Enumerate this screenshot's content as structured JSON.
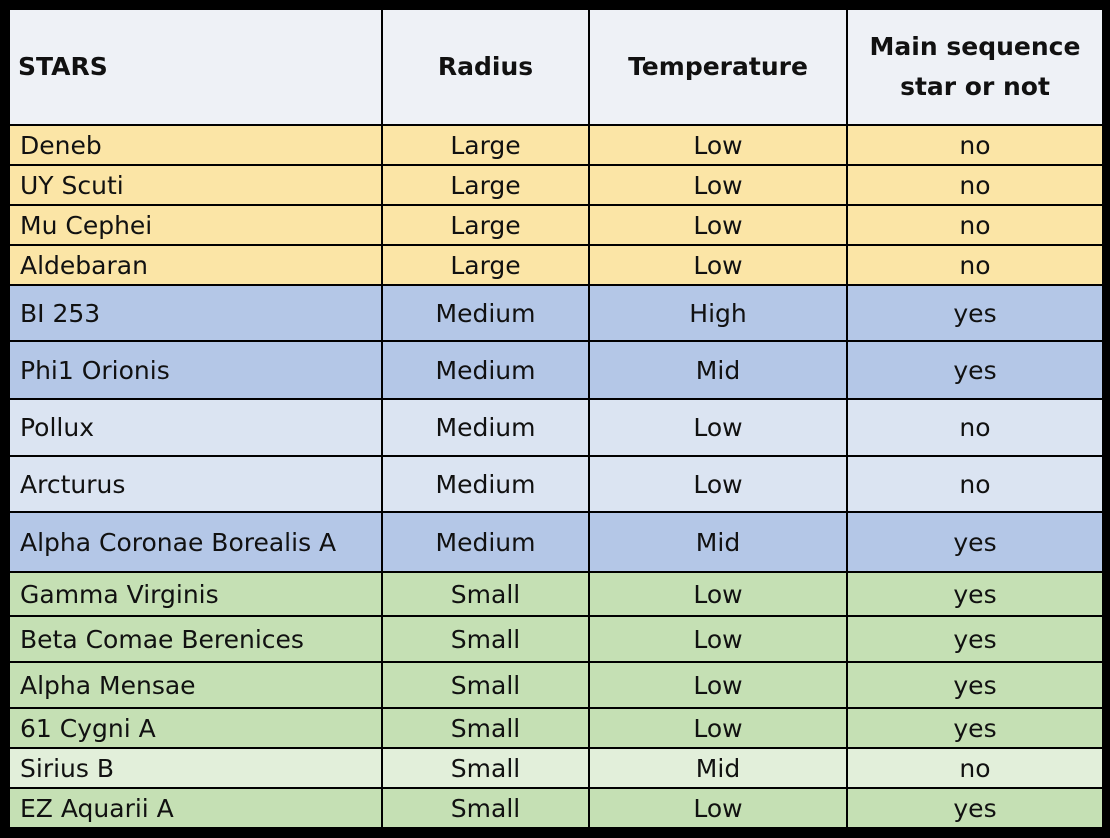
{
  "table": {
    "headers": [
      "STARS",
      "Radius",
      "Temperature",
      "Main sequence star or not"
    ],
    "rows": [
      {
        "star": "Deneb",
        "radius": "Large",
        "temperature": "Low",
        "main_sequence": "no",
        "color": "#fbe5a6"
      },
      {
        "star": "UY Scuti",
        "radius": "Large",
        "temperature": "Low",
        "main_sequence": "no",
        "color": "#fbe5a6"
      },
      {
        "star": "Mu Cephei",
        "radius": "Large",
        "temperature": "Low",
        "main_sequence": "no",
        "color": "#fbe5a6"
      },
      {
        "star": "Aldebaran",
        "radius": "Large",
        "temperature": "Low",
        "main_sequence": "no",
        "color": "#fbe5a6"
      },
      {
        "star": "BI 253",
        "radius": "Medium",
        "temperature": "High",
        "main_sequence": "yes",
        "color": "#b4c7e7"
      },
      {
        "star": "Phi1 Orionis",
        "radius": "Medium",
        "temperature": "Mid",
        "main_sequence": "yes",
        "color": "#b4c7e7"
      },
      {
        "star": "Pollux",
        "radius": "Medium",
        "temperature": "Low",
        "main_sequence": "no",
        "color": "#dbe4f2"
      },
      {
        "star": "Arcturus",
        "radius": "Medium",
        "temperature": "Low",
        "main_sequence": "no",
        "color": "#dbe4f2"
      },
      {
        "star": "Alpha Coronae Borealis A",
        "radius": "Medium",
        "temperature": "Mid",
        "main_sequence": "yes",
        "color": "#b4c7e7"
      },
      {
        "star": "Gamma Virginis",
        "radius": "Small",
        "temperature": "Low",
        "main_sequence": "yes",
        "color": "#c5e0b4"
      },
      {
        "star": "Beta Comae Berenices",
        "radius": "Small",
        "temperature": "Low",
        "main_sequence": "yes",
        "color": "#c5e0b4"
      },
      {
        "star": "Alpha Mensae",
        "radius": "Small",
        "temperature": "Low",
        "main_sequence": "yes",
        "color": "#c5e0b4"
      },
      {
        "star": "61 Cygni A",
        "radius": "Small",
        "temperature": "Low",
        "main_sequence": "yes",
        "color": "#c5e0b4"
      },
      {
        "star": "Sirius B",
        "radius": "Small",
        "temperature": "Mid",
        "main_sequence": "no",
        "color": "#e2efda"
      },
      {
        "star": "EZ Aquarii A",
        "radius": "Small",
        "temperature": "Low",
        "main_sequence": "yes",
        "color": "#c5e0b4"
      }
    ]
  }
}
